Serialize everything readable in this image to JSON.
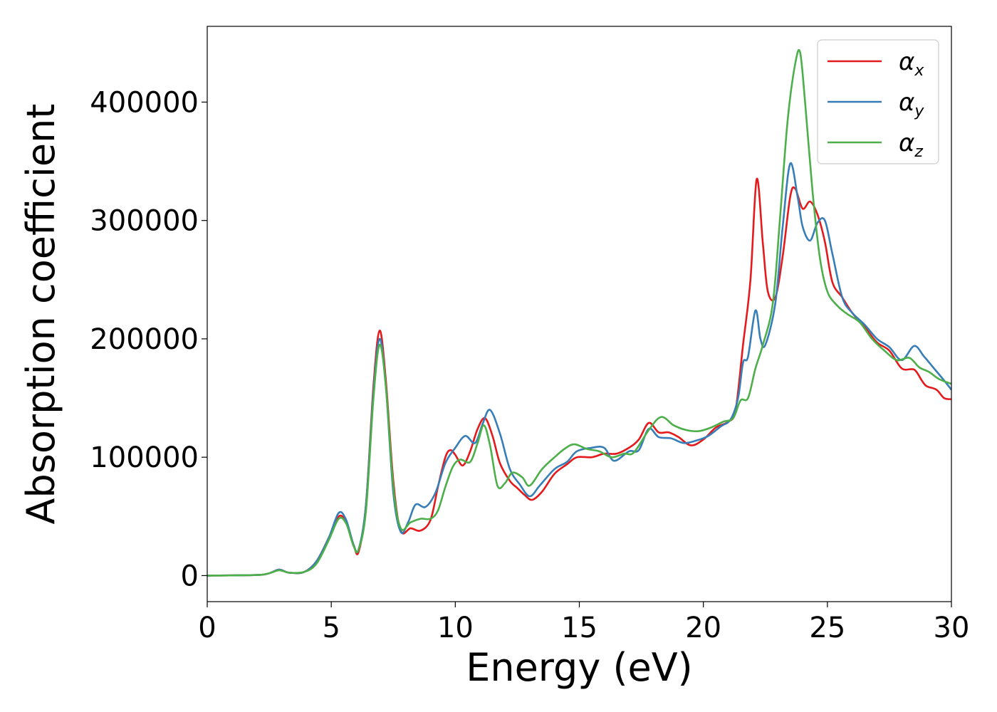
{
  "chart_data": {
    "type": "line",
    "xlabel": "Energy (eV)",
    "ylabel": "Absorption coefficient",
    "xlim": [
      0,
      30
    ],
    "ylim": [
      -22000,
      464000
    ],
    "xticks": [
      "0",
      "5",
      "10",
      "15",
      "20",
      "25",
      "30"
    ],
    "yticks": [
      "0",
      "100000",
      "200000",
      "300000",
      "400000"
    ],
    "grid": false,
    "legend_position": "top-right",
    "series": [
      {
        "name": "α",
        "subscript": "x",
        "color": "#e41a1c",
        "points": [
          [
            0,
            0
          ],
          [
            2,
            500
          ],
          [
            2.5,
            2000
          ],
          [
            2.9,
            5000
          ],
          [
            3.3,
            2500
          ],
          [
            3.9,
            3000
          ],
          [
            4.4,
            12000
          ],
          [
            4.9,
            32000
          ],
          [
            5.3,
            50000
          ],
          [
            5.6,
            45000
          ],
          [
            5.9,
            26000
          ],
          [
            6.1,
            20000
          ],
          [
            6.4,
            60000
          ],
          [
            6.7,
            160000
          ],
          [
            6.95,
            207000
          ],
          [
            7.2,
            165000
          ],
          [
            7.5,
            80000
          ],
          [
            7.8,
            38000
          ],
          [
            8.2,
            40000
          ],
          [
            8.6,
            38000
          ],
          [
            9.0,
            47000
          ],
          [
            9.3,
            75000
          ],
          [
            9.6,
            100000
          ],
          [
            9.8,
            106000
          ],
          [
            10.0,
            102000
          ],
          [
            10.3,
            93000
          ],
          [
            10.6,
            105000
          ],
          [
            10.9,
            124000
          ],
          [
            11.2,
            133000
          ],
          [
            11.5,
            118000
          ],
          [
            11.8,
            95000
          ],
          [
            12.2,
            80000
          ],
          [
            12.5,
            74000
          ],
          [
            12.8,
            68000
          ],
          [
            13.1,
            64000
          ],
          [
            13.5,
            71000
          ],
          [
            14.0,
            86000
          ],
          [
            14.5,
            94000
          ],
          [
            14.9,
            100000
          ],
          [
            15.5,
            100000
          ],
          [
            16.0,
            103000
          ],
          [
            16.5,
            103000
          ],
          [
            17.0,
            108000
          ],
          [
            17.4,
            115000
          ],
          [
            17.8,
            129000
          ],
          [
            18.2,
            121000
          ],
          [
            18.6,
            121000
          ],
          [
            19.0,
            117000
          ],
          [
            19.5,
            110000
          ],
          [
            20.0,
            115000
          ],
          [
            20.5,
            125000
          ],
          [
            21.0,
            130000
          ],
          [
            21.3,
            140000
          ],
          [
            21.6,
            195000
          ],
          [
            21.9,
            250000
          ],
          [
            22.15,
            335000
          ],
          [
            22.4,
            280000
          ],
          [
            22.6,
            240000
          ],
          [
            22.9,
            235000
          ],
          [
            23.2,
            270000
          ],
          [
            23.5,
            320000
          ],
          [
            23.7,
            327000
          ],
          [
            24.0,
            310000
          ],
          [
            24.3,
            316000
          ],
          [
            24.6,
            305000
          ],
          [
            24.9,
            282000
          ],
          [
            25.2,
            248000
          ],
          [
            25.6,
            235000
          ],
          [
            26.0,
            222000
          ],
          [
            26.5,
            210000
          ],
          [
            27.0,
            197000
          ],
          [
            27.5,
            190000
          ],
          [
            28.0,
            175000
          ],
          [
            28.5,
            174000
          ],
          [
            28.8,
            165000
          ],
          [
            29.0,
            160000
          ],
          [
            29.4,
            157000
          ],
          [
            29.7,
            150000
          ],
          [
            30,
            149000
          ]
        ]
      },
      {
        "name": "α",
        "subscript": "y",
        "color": "#377eb8",
        "points": [
          [
            0,
            0
          ],
          [
            2,
            500
          ],
          [
            2.5,
            2000
          ],
          [
            2.9,
            5000
          ],
          [
            3.3,
            2500
          ],
          [
            3.9,
            3000
          ],
          [
            4.4,
            12000
          ],
          [
            4.9,
            32000
          ],
          [
            5.3,
            53000
          ],
          [
            5.6,
            47000
          ],
          [
            5.9,
            26000
          ],
          [
            6.1,
            22000
          ],
          [
            6.4,
            60000
          ],
          [
            6.7,
            155000
          ],
          [
            6.95,
            200000
          ],
          [
            7.2,
            160000
          ],
          [
            7.5,
            70000
          ],
          [
            7.8,
            37000
          ],
          [
            8.1,
            45000
          ],
          [
            8.4,
            60000
          ],
          [
            8.8,
            58000
          ],
          [
            9.2,
            70000
          ],
          [
            9.6,
            95000
          ],
          [
            10.0,
            108000
          ],
          [
            10.4,
            118000
          ],
          [
            10.8,
            112000
          ],
          [
            11.1,
            128000
          ],
          [
            11.4,
            140000
          ],
          [
            11.8,
            120000
          ],
          [
            12.2,
            90000
          ],
          [
            12.6,
            77000
          ],
          [
            13.0,
            67000
          ],
          [
            13.4,
            76000
          ],
          [
            14.0,
            90000
          ],
          [
            14.5,
            96000
          ],
          [
            14.9,
            105000
          ],
          [
            15.5,
            108000
          ],
          [
            16.0,
            108000
          ],
          [
            16.4,
            97000
          ],
          [
            17.0,
            105000
          ],
          [
            17.4,
            106000
          ],
          [
            17.8,
            124000
          ],
          [
            18.2,
            117000
          ],
          [
            18.7,
            116000
          ],
          [
            19.2,
            112000
          ],
          [
            19.7,
            114000
          ],
          [
            20.2,
            118000
          ],
          [
            20.7,
            126000
          ],
          [
            21.1,
            132000
          ],
          [
            21.4,
            150000
          ],
          [
            21.6,
            180000
          ],
          [
            21.8,
            185000
          ],
          [
            22.1,
            224000
          ],
          [
            22.3,
            200000
          ],
          [
            22.5,
            195000
          ],
          [
            22.9,
            230000
          ],
          [
            23.2,
            295000
          ],
          [
            23.5,
            348000
          ],
          [
            23.8,
            320000
          ],
          [
            24.0,
            295000
          ],
          [
            24.3,
            283000
          ],
          [
            24.6,
            298000
          ],
          [
            24.9,
            300000
          ],
          [
            25.2,
            272000
          ],
          [
            25.6,
            235000
          ],
          [
            26.0,
            222000
          ],
          [
            26.5,
            212000
          ],
          [
            27.0,
            200000
          ],
          [
            27.5,
            193000
          ],
          [
            28.0,
            182000
          ],
          [
            28.5,
            194000
          ],
          [
            28.9,
            185000
          ],
          [
            29.3,
            175000
          ],
          [
            29.7,
            165000
          ],
          [
            30,
            157000
          ]
        ]
      },
      {
        "name": "α",
        "subscript": "z",
        "color": "#4daf4a",
        "points": [
          [
            0,
            0
          ],
          [
            2,
            500
          ],
          [
            2.5,
            2000
          ],
          [
            2.9,
            4500
          ],
          [
            3.3,
            2500
          ],
          [
            3.9,
            3000
          ],
          [
            4.4,
            10000
          ],
          [
            4.9,
            30000
          ],
          [
            5.3,
            48000
          ],
          [
            5.6,
            44000
          ],
          [
            5.9,
            25000
          ],
          [
            6.1,
            22000
          ],
          [
            6.4,
            55000
          ],
          [
            6.7,
            150000
          ],
          [
            6.95,
            195000
          ],
          [
            7.2,
            160000
          ],
          [
            7.5,
            75000
          ],
          [
            7.8,
            40000
          ],
          [
            8.2,
            45000
          ],
          [
            8.6,
            48000
          ],
          [
            9.0,
            48000
          ],
          [
            9.3,
            55000
          ],
          [
            9.6,
            75000
          ],
          [
            9.9,
            92000
          ],
          [
            10.2,
            98000
          ],
          [
            10.6,
            96000
          ],
          [
            10.9,
            112000
          ],
          [
            11.15,
            127000
          ],
          [
            11.4,
            110000
          ],
          [
            11.7,
            76000
          ],
          [
            12.0,
            78000
          ],
          [
            12.3,
            87000
          ],
          [
            12.7,
            83000
          ],
          [
            13.0,
            76000
          ],
          [
            13.5,
            90000
          ],
          [
            14.0,
            100000
          ],
          [
            14.4,
            107000
          ],
          [
            14.8,
            111000
          ],
          [
            15.3,
            107000
          ],
          [
            15.8,
            105000
          ],
          [
            16.3,
            100000
          ],
          [
            16.8,
            103000
          ],
          [
            17.2,
            104000
          ],
          [
            17.8,
            123000
          ],
          [
            18.3,
            134000
          ],
          [
            18.8,
            127000
          ],
          [
            19.3,
            123000
          ],
          [
            19.8,
            122000
          ],
          [
            20.3,
            125000
          ],
          [
            20.8,
            130000
          ],
          [
            21.2,
            133000
          ],
          [
            21.5,
            148000
          ],
          [
            21.8,
            150000
          ],
          [
            22.1,
            175000
          ],
          [
            22.4,
            195000
          ],
          [
            22.8,
            230000
          ],
          [
            23.1,
            305000
          ],
          [
            23.4,
            385000
          ],
          [
            23.7,
            432000
          ],
          [
            23.9,
            442000
          ],
          [
            24.1,
            400000
          ],
          [
            24.4,
            325000
          ],
          [
            24.7,
            268000
          ],
          [
            25.0,
            240000
          ],
          [
            25.4,
            228000
          ],
          [
            25.8,
            221000
          ],
          [
            26.3,
            214000
          ],
          [
            26.8,
            200000
          ],
          [
            27.3,
            190000
          ],
          [
            27.8,
            182000
          ],
          [
            28.3,
            184000
          ],
          [
            28.7,
            176000
          ],
          [
            29.1,
            172000
          ],
          [
            29.5,
            166000
          ],
          [
            30,
            162000
          ]
        ]
      }
    ]
  }
}
